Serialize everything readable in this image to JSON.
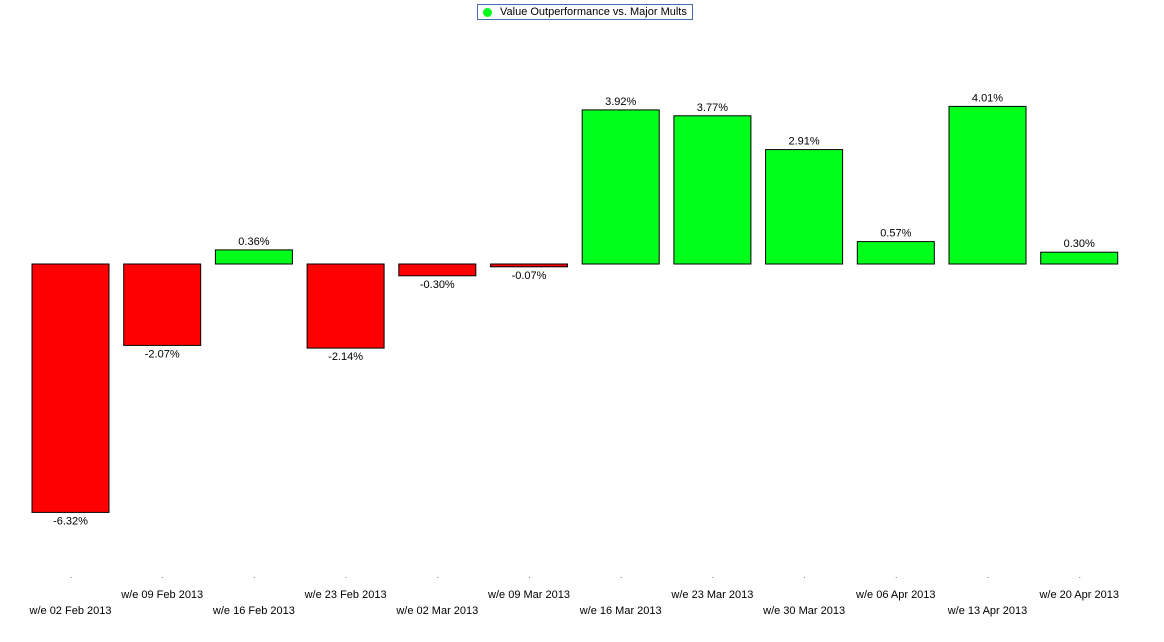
{
  "chart_data": {
    "type": "bar",
    "categories": [
      "w/e 02 Feb 2013",
      "w/e 09 Feb 2013",
      "w/e 16 Feb 2013",
      "w/e 23 Feb 2013",
      "w/e 02 Mar 2013",
      "w/e 09 Mar 2013",
      "w/e 16 Mar 2013",
      "w/e 23 Mar 2013",
      "w/e 30 Mar 2013",
      "w/e 06 Apr 2013",
      "w/e 13 Apr 2013",
      "w/e 20 Apr 2013"
    ],
    "series": [
      {
        "name": "Value Outperformance vs. Major Mults",
        "values": [
          -6.32,
          -2.07,
          0.36,
          -2.14,
          -0.3,
          -0.07,
          3.92,
          3.77,
          2.91,
          0.57,
          4.01,
          0.3
        ]
      }
    ],
    "data_labels": [
      "-6.32%",
      "-2.07%",
      "0.36%",
      "-2.14%",
      "-0.30%",
      "-0.07%",
      "3.92%",
      "3.77%",
      "2.91%",
      "0.57%",
      "4.01%",
      "0.30%"
    ],
    "value_unit": "%",
    "legend_position": "top-center",
    "grid": false,
    "colors": {
      "positive": "#00ff1a",
      "negative": "#ff0000",
      "legend_marker": "#00ff1a",
      "legend_border": "#4a6fb0"
    }
  }
}
